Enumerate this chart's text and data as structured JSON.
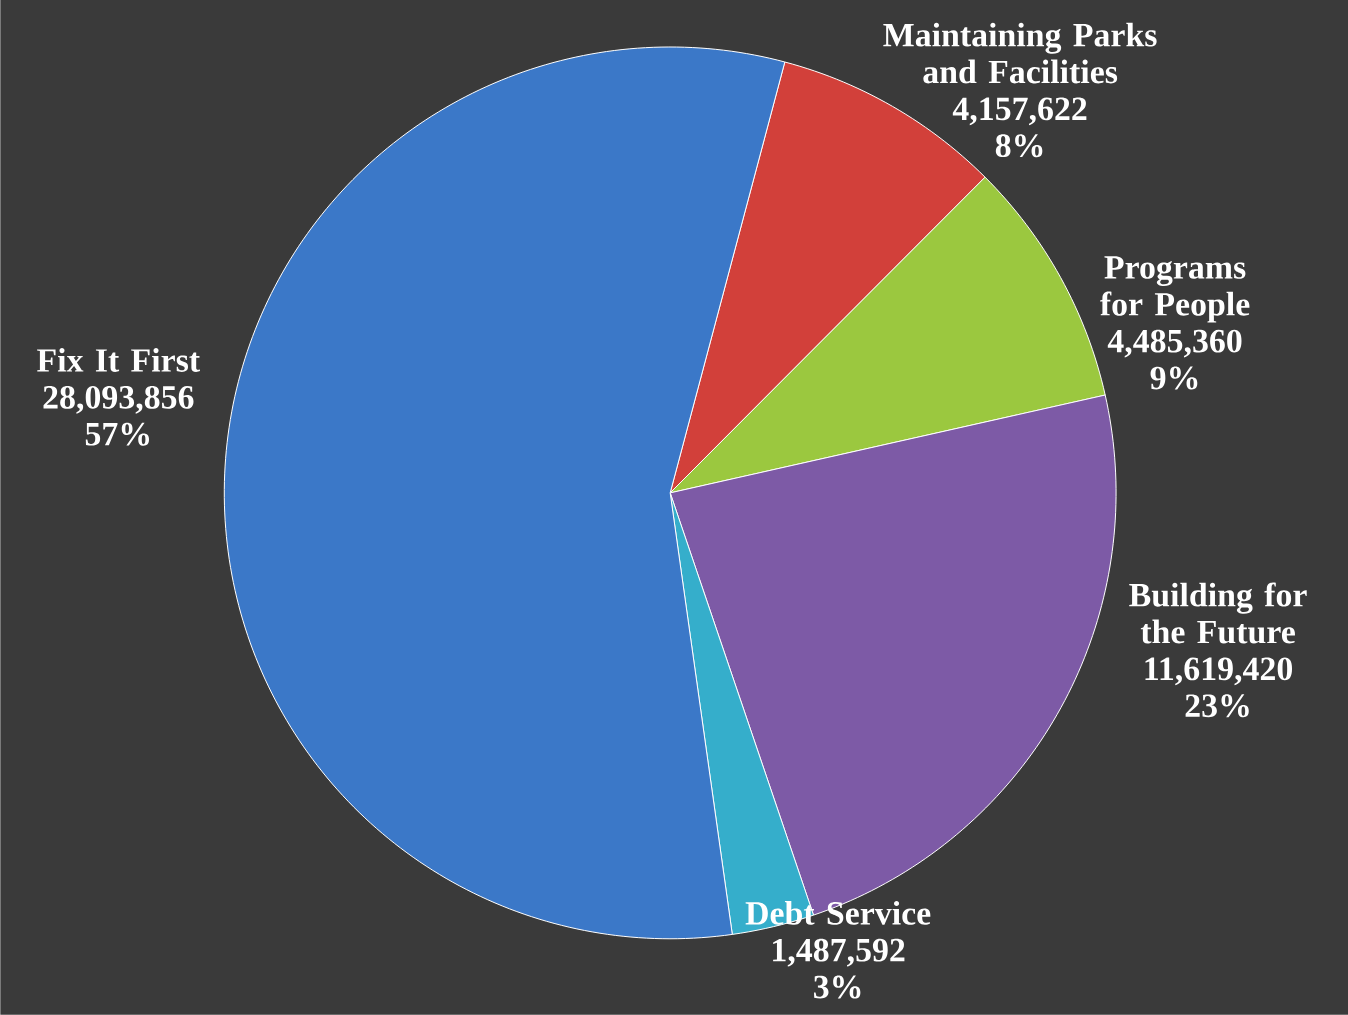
{
  "chart_data": {
    "type": "pie",
    "categories": [
      "Maintaining Parks and Facilities",
      "Programs for People",
      "Building for the Future",
      "Debt Service",
      "Fix It First"
    ],
    "values": [
      4157622,
      4485360,
      11619420,
      1487592,
      28093856
    ],
    "colors": [
      "#d2403a",
      "#9bc83f",
      "#7d5aa6",
      "#35aecb",
      "#3b78c8"
    ],
    "value_labels": [
      "4,157,622",
      "4,485,360",
      "11,619,420",
      "1,487,592",
      "28,093,856"
    ],
    "annotations": [
      "8%",
      "9%",
      "23%",
      "3%",
      "57%"
    ]
  }
}
